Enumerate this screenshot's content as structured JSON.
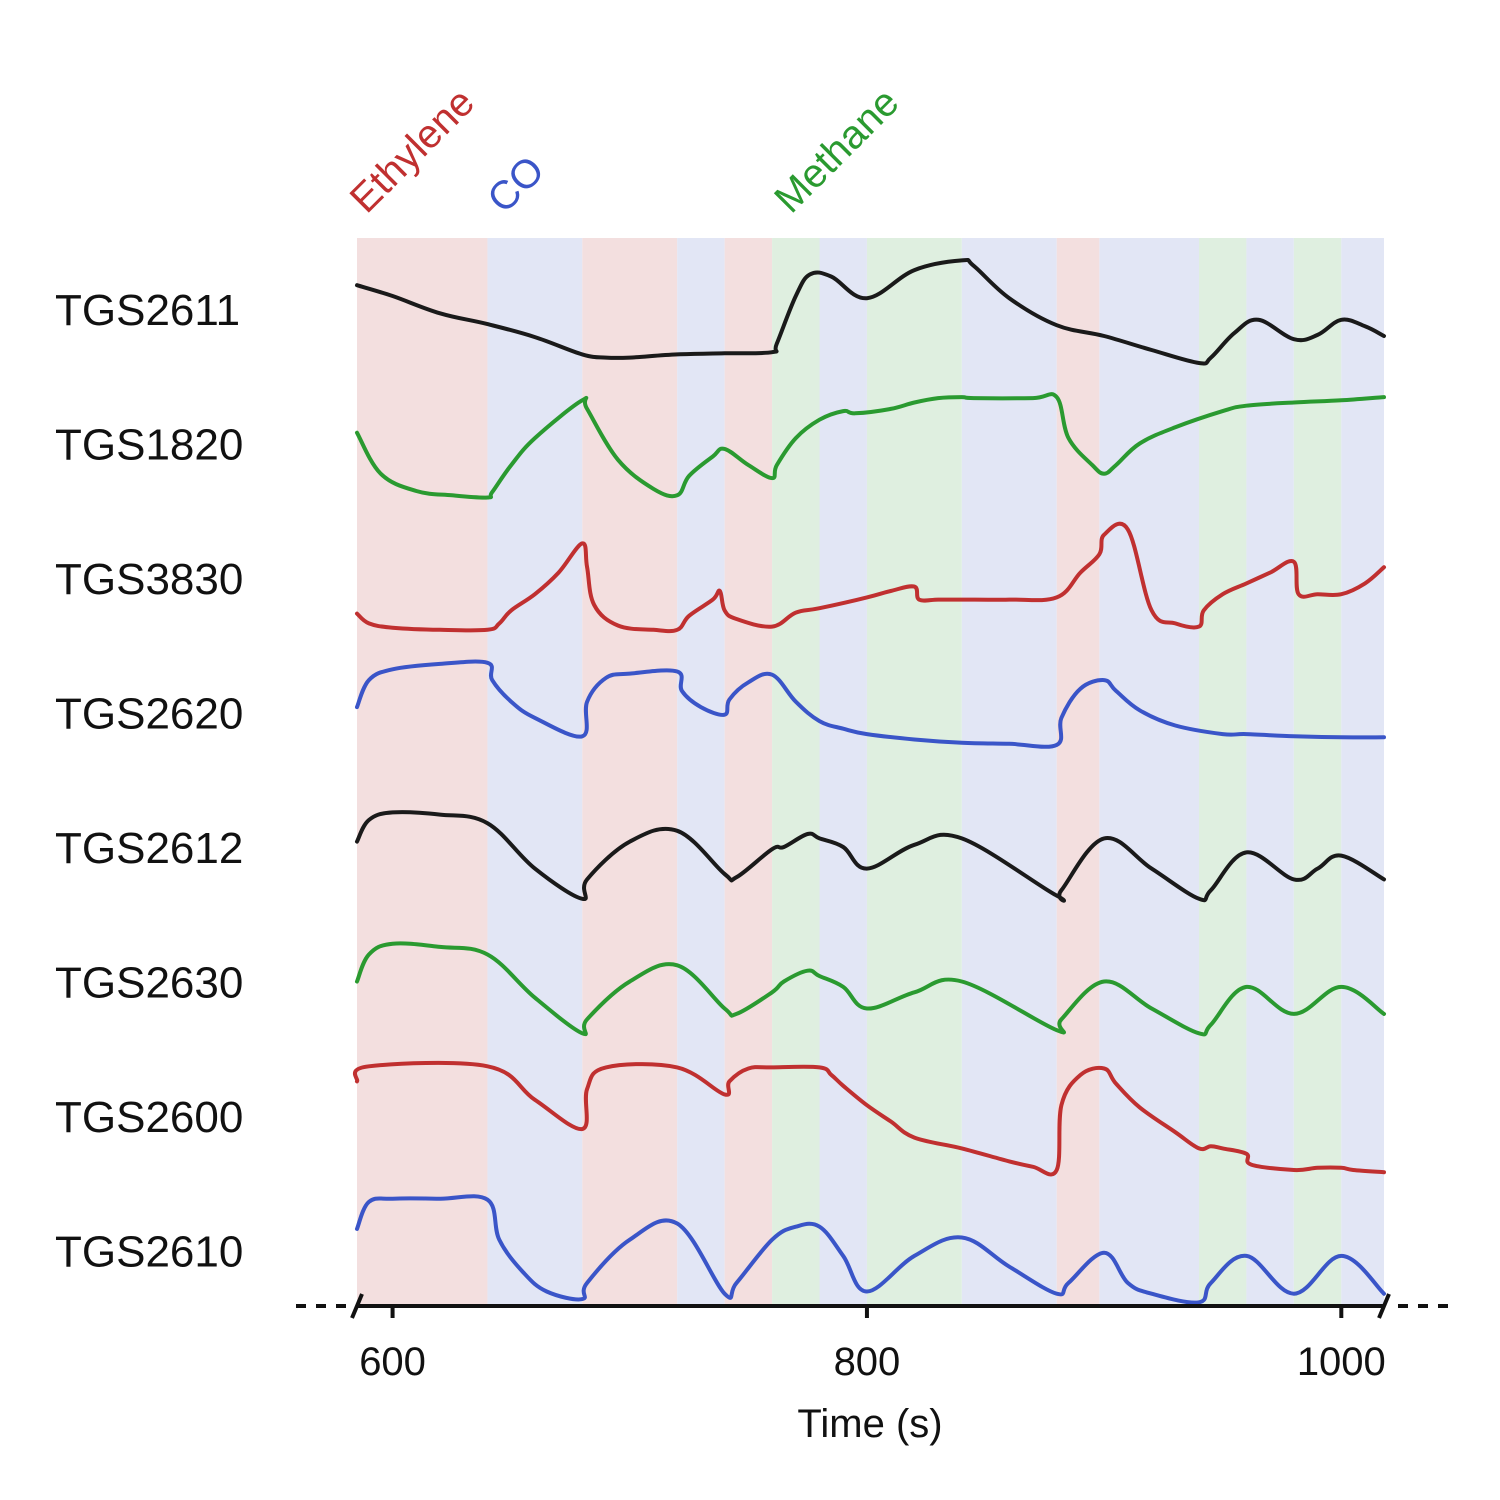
{
  "chart_data": {
    "type": "line",
    "xlabel": "Time (s)",
    "xlim": [
      585,
      1018
    ],
    "xticks": [
      600,
      800,
      1000
    ],
    "tick_labels": [
      "600",
      "800",
      "1000"
    ],
    "gases": [
      {
        "name": "Ethylene",
        "color": "#c03030",
        "bg": "#f3dfdf"
      },
      {
        "name": "CO",
        "color": "#3a55c8",
        "bg": "#e2e6f5"
      },
      {
        "name": "Methane",
        "color": "#2a9a30",
        "bg": "#dfefe0"
      }
    ],
    "gas_labels": [
      {
        "text": "Ethylene",
        "gas": 0,
        "x": 589
      },
      {
        "text": "CO",
        "gas": 1,
        "x": 647
      },
      {
        "text": "Methane",
        "gas": 2,
        "x": 768
      }
    ],
    "intervals": [
      {
        "start": 585,
        "end": 640,
        "gas": 0
      },
      {
        "start": 640,
        "end": 680,
        "gas": 1
      },
      {
        "start": 680,
        "end": 720,
        "gas": 0
      },
      {
        "start": 720,
        "end": 740,
        "gas": 1
      },
      {
        "start": 740,
        "end": 760,
        "gas": 0
      },
      {
        "start": 760,
        "end": 780,
        "gas": 2
      },
      {
        "start": 780,
        "end": 800,
        "gas": 1
      },
      {
        "start": 800,
        "end": 840,
        "gas": 2
      },
      {
        "start": 840,
        "end": 880,
        "gas": 1
      },
      {
        "start": 880,
        "end": 898,
        "gas": 0
      },
      {
        "start": 898,
        "end": 940,
        "gas": 1
      },
      {
        "start": 940,
        "end": 960,
        "gas": 2
      },
      {
        "start": 960,
        "end": 980,
        "gas": 1
      },
      {
        "start": 980,
        "end": 1000,
        "gas": 2
      },
      {
        "start": 1000,
        "end": 1018,
        "gas": 1
      }
    ],
    "series": [
      {
        "name": "TGS2611",
        "color": "#1a1a1a",
        "x": [
          585,
          600,
          620,
          640,
          660,
          680,
          690,
          700,
          720,
          740,
          760,
          762,
          770,
          776,
          785,
          800,
          820,
          840,
          845,
          860,
          880,
          900,
          920,
          940,
          945,
          955,
          965,
          980,
          990,
          1000,
          1010,
          1018
        ],
        "y": [
          0.72,
          0.62,
          0.46,
          0.36,
          0.24,
          0.08,
          0.05,
          0.05,
          0.08,
          0.09,
          0.1,
          0.18,
          0.62,
          0.82,
          0.8,
          0.6,
          0.86,
          0.95,
          0.9,
          0.6,
          0.35,
          0.25,
          0.12,
          0,
          0.05,
          0.28,
          0.4,
          0.22,
          0.26,
          0.4,
          0.34,
          0.25
        ]
      },
      {
        "name": "TGS1820",
        "color": "#2a9a30",
        "x": [
          585,
          595,
          610,
          625,
          640,
          642,
          650,
          660,
          680,
          682,
          695,
          710,
          720,
          725,
          735,
          740,
          750,
          760,
          762,
          770,
          780,
          790,
          795,
          810,
          820,
          830,
          840,
          845,
          870,
          880,
          885,
          895,
          900,
          905,
          915,
          930,
          950,
          960,
          980,
          1000,
          1018
        ],
        "y": [
          0.6,
          0.22,
          0.06,
          0.02,
          0,
          0.05,
          0.3,
          0.55,
          0.9,
          0.82,
          0.35,
          0.08,
          0.02,
          0.2,
          0.38,
          0.45,
          0.3,
          0.18,
          0.3,
          0.55,
          0.72,
          0.8,
          0.78,
          0.82,
          0.88,
          0.92,
          0.93,
          0.92,
          0.92,
          0.93,
          0.55,
          0.3,
          0.22,
          0.3,
          0.5,
          0.65,
          0.8,
          0.85,
          0.88,
          0.9,
          0.93
        ]
      },
      {
        "name": "TGS3830",
        "color": "#c03030",
        "x": [
          585,
          590,
          600,
          620,
          640,
          645,
          650,
          660,
          670,
          680,
          682,
          685,
          695,
          710,
          720,
          725,
          735,
          738,
          740,
          745,
          760,
          770,
          780,
          800,
          810,
          820,
          822,
          830,
          840,
          860,
          880,
          890,
          898,
          900,
          910,
          920,
          930,
          940,
          942,
          950,
          960,
          970,
          980,
          982,
          990,
          1000,
          1010,
          1018
        ],
        "y": [
          0.17,
          0.08,
          0.04,
          0.02,
          0.02,
          0.08,
          0.2,
          0.35,
          0.55,
          0.82,
          0.6,
          0.25,
          0.06,
          0.02,
          0.02,
          0.15,
          0.3,
          0.38,
          0.2,
          0.12,
          0.05,
          0.18,
          0.22,
          0.32,
          0.38,
          0.42,
          0.3,
          0.3,
          0.3,
          0.3,
          0.32,
          0.55,
          0.72,
          0.9,
          0.95,
          0.2,
          0.08,
          0.05,
          0.2,
          0.35,
          0.45,
          0.55,
          0.65,
          0.35,
          0.35,
          0.35,
          0.45,
          0.6
        ]
      },
      {
        "name": "TGS2620",
        "color": "#3a55c8",
        "x": [
          585,
          590,
          600,
          620,
          640,
          642,
          650,
          660,
          680,
          682,
          690,
          700,
          720,
          722,
          730,
          740,
          742,
          750,
          760,
          770,
          780,
          790,
          800,
          820,
          840,
          860,
          880,
          882,
          890,
          900,
          905,
          915,
          930,
          950,
          960,
          980,
          1000,
          1018
        ],
        "y": [
          0.55,
          0.8,
          0.9,
          0.95,
          0.96,
          0.8,
          0.6,
          0.45,
          0.28,
          0.6,
          0.82,
          0.86,
          0.88,
          0.7,
          0.55,
          0.48,
          0.62,
          0.78,
          0.85,
          0.6,
          0.42,
          0.35,
          0.3,
          0.25,
          0.22,
          0.21,
          0.2,
          0.45,
          0.72,
          0.8,
          0.7,
          0.52,
          0.38,
          0.3,
          0.3,
          0.28,
          0.27,
          0.27
        ]
      },
      {
        "name": "TGS2612",
        "color": "#1a1a1a",
        "x": [
          585,
          590,
          600,
          620,
          640,
          660,
          680,
          682,
          700,
          720,
          740,
          745,
          760,
          765,
          775,
          780,
          790,
          800,
          820,
          840,
          880,
          882,
          900,
          920,
          940,
          945,
          960,
          980,
          990,
          1000,
          1018
        ],
        "y": [
          0.55,
          0.75,
          0.82,
          0.8,
          0.72,
          0.3,
          0.02,
          0.2,
          0.55,
          0.65,
          0.25,
          0.22,
          0.48,
          0.5,
          0.62,
          0.58,
          0.5,
          0.3,
          0.52,
          0.58,
          0.05,
          0.1,
          0.58,
          0.3,
          0.02,
          0.1,
          0.45,
          0.2,
          0.3,
          0.42,
          0.2
        ]
      },
      {
        "name": "TGS2630",
        "color": "#2a9a30",
        "x": [
          585,
          590,
          600,
          620,
          640,
          660,
          680,
          682,
          700,
          720,
          740,
          745,
          760,
          765,
          775,
          780,
          790,
          800,
          820,
          840,
          880,
          882,
          900,
          920,
          940,
          945,
          960,
          980,
          1000,
          1018
        ],
        "y": [
          0.5,
          0.75,
          0.85,
          0.82,
          0.75,
          0.35,
          0.02,
          0.15,
          0.5,
          0.65,
          0.25,
          0.2,
          0.4,
          0.5,
          0.6,
          0.55,
          0.45,
          0.25,
          0.4,
          0.5,
          0.05,
          0.15,
          0.5,
          0.25,
          0.02,
          0.1,
          0.45,
          0.2,
          0.45,
          0.2
        ]
      },
      {
        "name": "TGS2600",
        "color": "#c03030",
        "x": [
          585,
          590,
          640,
          660,
          680,
          682,
          690,
          720,
          740,
          742,
          750,
          760,
          780,
          785,
          790,
          800,
          810,
          820,
          840,
          860,
          870,
          880,
          882,
          890,
          900,
          905,
          915,
          930,
          940,
          945,
          950,
          960,
          962,
          980,
          990,
          1000,
          1005,
          1018
        ],
        "y": [
          0.82,
          0.96,
          0.96,
          0.65,
          0.38,
          0.75,
          0.95,
          0.95,
          0.7,
          0.82,
          0.94,
          0.95,
          0.95,
          0.88,
          0.78,
          0.6,
          0.45,
          0.3,
          0.2,
          0.08,
          0.03,
          0,
          0.6,
          0.88,
          0.94,
          0.8,
          0.58,
          0.35,
          0.2,
          0.22,
          0.2,
          0.15,
          0.05,
          0,
          0.02,
          0.02,
          0,
          -0.02
        ]
      },
      {
        "name": "TGS2610",
        "color": "#3a55c8",
        "x": [
          585,
          590,
          600,
          620,
          640,
          645,
          655,
          665,
          680,
          682,
          700,
          720,
          740,
          745,
          760,
          770,
          780,
          790,
          800,
          820,
          840,
          860,
          880,
          885,
          900,
          910,
          920,
          940,
          945,
          960,
          980,
          1000,
          1018
        ],
        "y": [
          0.7,
          0.95,
          0.98,
          0.98,
          0.97,
          0.6,
          0.3,
          0.12,
          0.05,
          0.2,
          0.6,
          0.75,
          0.1,
          0.2,
          0.6,
          0.72,
          0.72,
          0.45,
          0.12,
          0.45,
          0.62,
          0.35,
          0.1,
          0.2,
          0.48,
          0.2,
          0.1,
          0.02,
          0.2,
          0.45,
          0.1,
          0.45,
          0.1
        ]
      }
    ]
  }
}
